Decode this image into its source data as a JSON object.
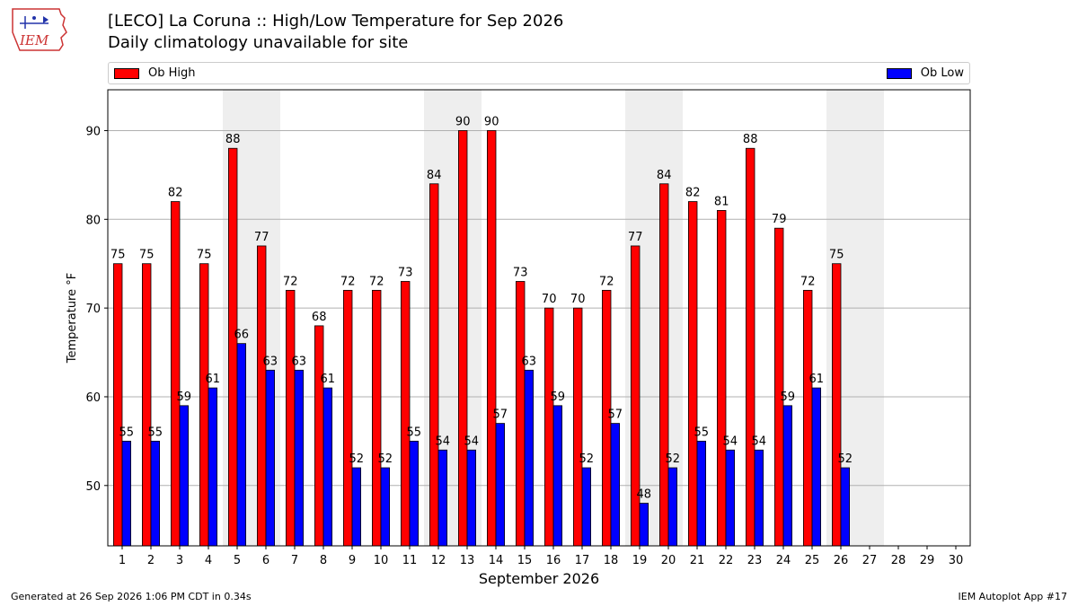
{
  "header": {
    "title": "[LECO] La Coruna :: High/Low Temperature for Sep 2026",
    "subtitle": "Daily climatology unavailable for site",
    "logo_text": "IEM"
  },
  "footer": {
    "left": "Generated at 26 Sep 2026 1:06 PM CDT in 0.34s",
    "right": "IEM Autoplot App #17"
  },
  "colors": {
    "high": "#ff0000",
    "low": "#0000ff",
    "weekend_shade": "#eeeeee",
    "grid": "#b0b0b0"
  },
  "chart_data": {
    "type": "bar",
    "xlabel": "September 2026",
    "ylabel": "Temperature °F",
    "ylim": [
      43.2,
      94.6
    ],
    "yticks": [
      50,
      60,
      70,
      80,
      90
    ],
    "categories": [
      "1",
      "2",
      "3",
      "4",
      "5",
      "6",
      "7",
      "8",
      "9",
      "10",
      "11",
      "12",
      "13",
      "14",
      "15",
      "16",
      "17",
      "18",
      "19",
      "20",
      "21",
      "22",
      "23",
      "24",
      "25",
      "26",
      "27",
      "28",
      "29",
      "30"
    ],
    "shaded_days": [
      5,
      6,
      12,
      13,
      19,
      20,
      26,
      27
    ],
    "legend_placement": "top",
    "grid": "horizontal",
    "series": [
      {
        "name": "Ob High",
        "color": "#ff0000",
        "values": [
          75,
          75,
          82,
          75,
          88,
          77,
          72,
          68,
          72,
          72,
          73,
          84,
          90,
          90,
          73,
          70,
          70,
          72,
          77,
          84,
          82,
          81,
          88,
          79,
          72,
          75,
          null,
          null,
          null,
          null
        ]
      },
      {
        "name": "Ob Low",
        "color": "#0000ff",
        "values": [
          55,
          55,
          59,
          61,
          66,
          63,
          63,
          61,
          52,
          52,
          55,
          54,
          54,
          57,
          63,
          59,
          52,
          57,
          48,
          52,
          55,
          54,
          54,
          59,
          61,
          52,
          null,
          null,
          null,
          null
        ]
      }
    ]
  }
}
